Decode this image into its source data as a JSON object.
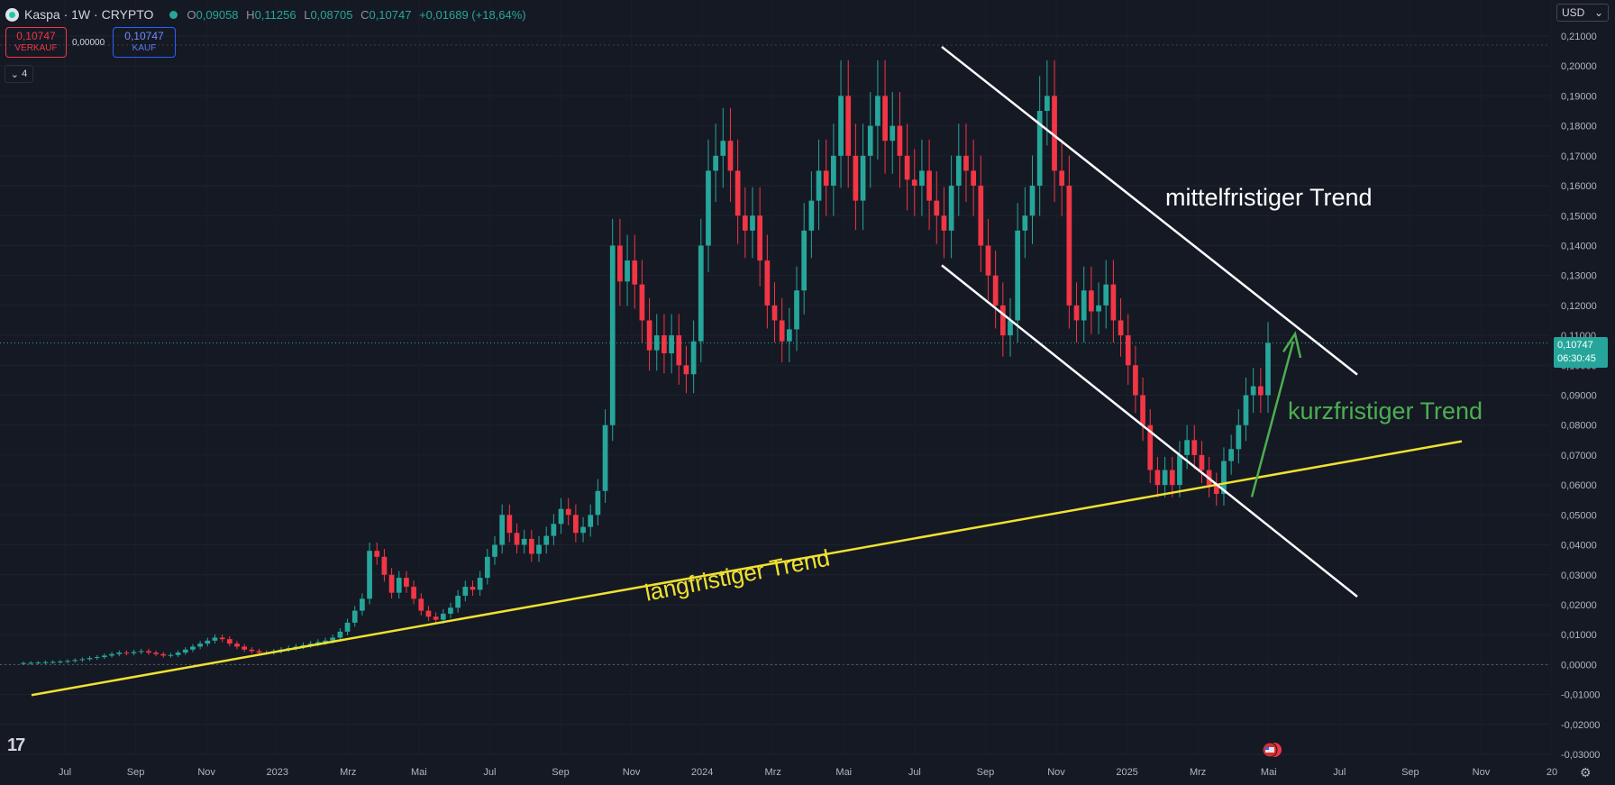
{
  "header": {
    "symbol": "Kaspa · 1W · CRYPTO",
    "o_label": "O",
    "o_value": "0,09058",
    "h_label": "H",
    "h_value": "0,11256",
    "l_label": "L",
    "l_value": "0,08705",
    "c_label": "C",
    "c_value": "0,10747",
    "change": "+0,01689 (+18,64%)"
  },
  "trade": {
    "sell_price": "0,10747",
    "sell_label": "VERKAUF",
    "spread": "0,00000",
    "buy_price": "0,10747",
    "buy_label": "KAUF"
  },
  "indicators_toggle": "4",
  "currency": "USD",
  "last_price": {
    "value": "0,10747",
    "countdown": "06:30:45"
  },
  "annotations": {
    "medium": "mittelfristiger Trend",
    "short": "kurzfristiger Trend",
    "long": "langfristiger Trend"
  },
  "colors": {
    "up": "#26a69a",
    "down": "#f23645",
    "bg": "#151924",
    "long_trend": "#f0e130",
    "channel": "#ffffff",
    "short_trend": "#4caf50"
  },
  "chart_data": {
    "type": "candlestick",
    "title": "Kaspa · 1W · CRYPTO",
    "ylim": [
      -0.03,
      0.21
    ],
    "y_ticks": [
      "0,21000",
      "0,20000",
      "0,19000",
      "0,18000",
      "0,17000",
      "0,16000",
      "0,15000",
      "0,14000",
      "0,13000",
      "0,12000",
      "0,11000",
      "0,10000",
      "0,09000",
      "0,08000",
      "0,07000",
      "0,06000",
      "0,05000",
      "0,04000",
      "0,03000",
      "0,02000",
      "0,01000",
      "0,00000",
      "-0,01000",
      "-0,02000",
      "-0,03000"
    ],
    "x_ticks": [
      "Jul",
      "Sep",
      "Nov",
      "2023",
      "Mrz",
      "Mai",
      "Jul",
      "Sep",
      "Nov",
      "2024",
      "Mrz",
      "Mai",
      "Jul",
      "Sep",
      "Nov",
      "2025",
      "Mrz",
      "Mai",
      "Jul",
      "Sep",
      "Nov",
      "20"
    ],
    "grid": true,
    "closes": [
      0.0005,
      0.0006,
      0.0007,
      0.0008,
      0.0009,
      0.001,
      0.0012,
      0.0015,
      0.0018,
      0.0022,
      0.0025,
      0.003,
      0.0035,
      0.004,
      0.0038,
      0.0042,
      0.0045,
      0.004,
      0.0035,
      0.003,
      0.0032,
      0.004,
      0.005,
      0.006,
      0.007,
      0.008,
      0.009,
      0.0085,
      0.007,
      0.006,
      0.005,
      0.0045,
      0.004,
      0.004,
      0.0045,
      0.005,
      0.0055,
      0.006,
      0.0065,
      0.007,
      0.0075,
      0.008,
      0.009,
      0.011,
      0.014,
      0.018,
      0.022,
      0.038,
      0.036,
      0.03,
      0.024,
      0.029,
      0.026,
      0.022,
      0.018,
      0.016,
      0.015,
      0.017,
      0.019,
      0.023,
      0.026,
      0.025,
      0.029,
      0.036,
      0.04,
      0.05,
      0.044,
      0.04,
      0.042,
      0.037,
      0.04,
      0.043,
      0.047,
      0.052,
      0.05,
      0.044,
      0.046,
      0.05,
      0.058,
      0.08,
      0.14,
      0.128,
      0.135,
      0.127,
      0.115,
      0.105,
      0.11,
      0.104,
      0.11,
      0.1,
      0.097,
      0.108,
      0.14,
      0.165,
      0.17,
      0.175,
      0.165,
      0.15,
      0.145,
      0.15,
      0.135,
      0.12,
      0.115,
      0.108,
      0.112,
      0.125,
      0.145,
      0.155,
      0.165,
      0.16,
      0.17,
      0.19,
      0.17,
      0.155,
      0.17,
      0.18,
      0.19,
      0.175,
      0.18,
      0.17,
      0.162,
      0.16,
      0.165,
      0.155,
      0.15,
      0.145,
      0.16,
      0.17,
      0.165,
      0.16,
      0.14,
      0.13,
      0.12,
      0.11,
      0.115,
      0.145,
      0.15,
      0.16,
      0.185,
      0.19,
      0.165,
      0.16,
      0.12,
      0.115,
      0.125,
      0.118,
      0.12,
      0.127,
      0.115,
      0.11,
      0.1,
      0.09,
      0.08,
      0.065,
      0.06,
      0.065,
      0.06,
      0.07,
      0.075,
      0.07,
      0.065,
      0.06,
      0.057,
      0.068,
      0.072,
      0.08,
      0.09,
      0.093,
      0.09,
      0.10747
    ]
  }
}
